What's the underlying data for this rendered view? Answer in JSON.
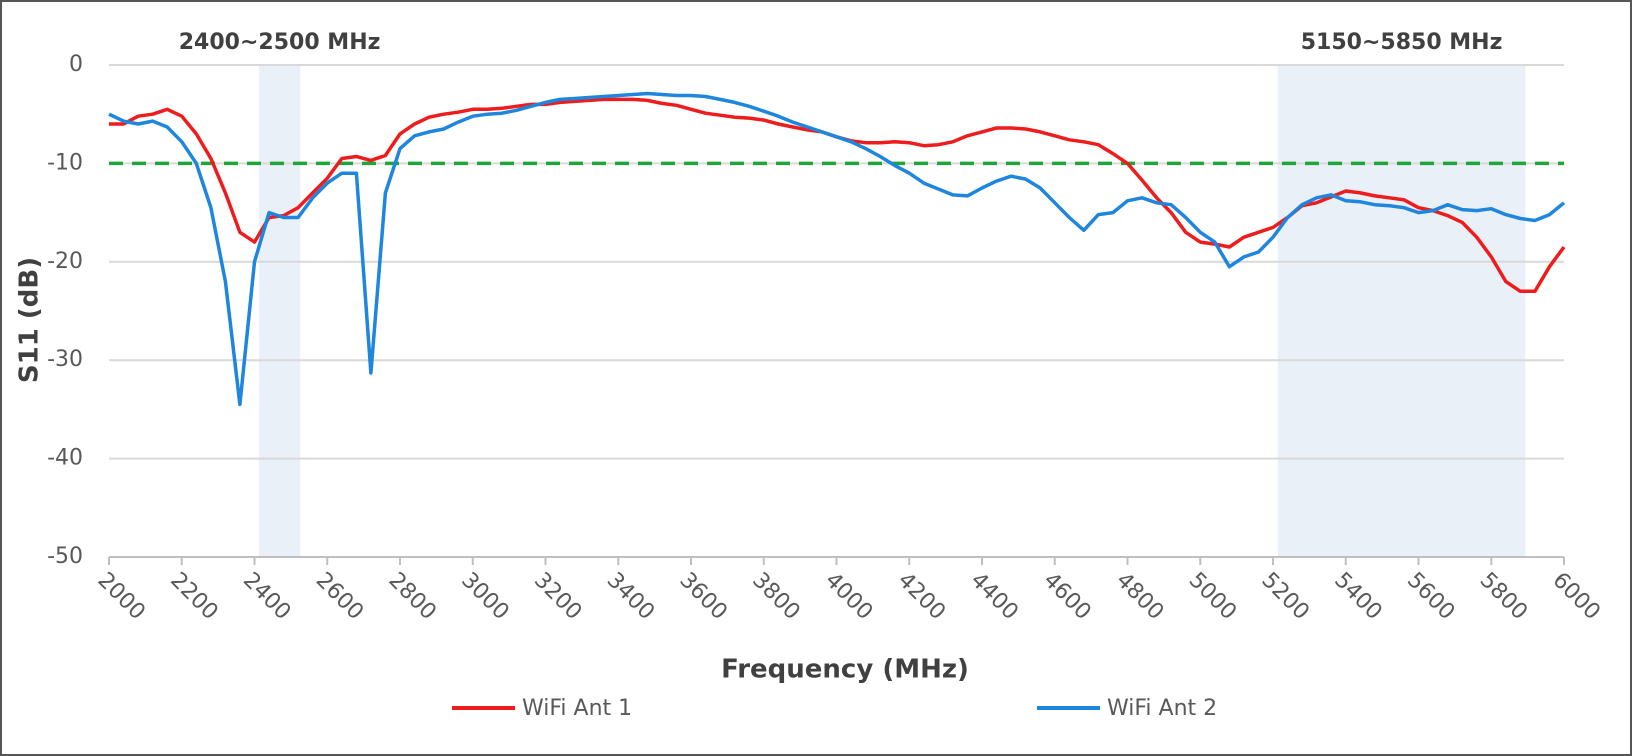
{
  "chart_data": {
    "type": "line",
    "xlabel": "Frequency (MHz)",
    "ylabel": "S11 (dB)",
    "xlim": [
      2000,
      6000
    ],
    "xticks": [
      2000,
      2200,
      2400,
      2600,
      2800,
      3000,
      3200,
      3400,
      3600,
      3800,
      4000,
      4200,
      4400,
      4600,
      4800,
      5000,
      5200,
      5400,
      5600,
      5800,
      6000
    ],
    "ylim": [
      -50,
      0
    ],
    "yticks": [
      0,
      -10,
      -20,
      -30,
      -40,
      -50
    ],
    "grid": true,
    "threshold": {
      "value": -10,
      "color": "#1fa53a"
    },
    "bands": [
      {
        "label": "2400~2500 MHz",
        "range": [
          2412,
          2526
        ],
        "color": "#e9f0f8"
      },
      {
        "label": "5150~5850 MHz",
        "range": [
          5213,
          5894
        ],
        "color": "#e9f0f8"
      }
    ],
    "x": [
      2000,
      2040,
      2080,
      2120,
      2160,
      2200,
      2240,
      2280,
      2320,
      2360,
      2400,
      2440,
      2480,
      2520,
      2560,
      2600,
      2640,
      2680,
      2720,
      2760,
      2800,
      2840,
      2880,
      2920,
      2960,
      3000,
      3040,
      3080,
      3120,
      3160,
      3200,
      3240,
      3280,
      3320,
      3360,
      3400,
      3440,
      3480,
      3520,
      3560,
      3600,
      3640,
      3680,
      3720,
      3760,
      3800,
      3840,
      3880,
      3920,
      3960,
      4000,
      4040,
      4080,
      4120,
      4160,
      4200,
      4240,
      4280,
      4320,
      4360,
      4400,
      4440,
      4480,
      4520,
      4560,
      4600,
      4640,
      4680,
      4720,
      4760,
      4800,
      4840,
      4880,
      4920,
      4960,
      5000,
      5040,
      5080,
      5120,
      5160,
      5200,
      5240,
      5280,
      5320,
      5360,
      5400,
      5440,
      5480,
      5520,
      5560,
      5600,
      5640,
      5680,
      5720,
      5760,
      5800,
      5840,
      5880,
      5920,
      5960,
      6000
    ],
    "series": [
      {
        "name": "WiFi Ant 1",
        "color": "#ee1c1c",
        "values": [
          -6.0,
          -6.0,
          -5.2,
          -5.0,
          -4.5,
          -5.2,
          -7.0,
          -9.5,
          -13,
          -17,
          -18,
          -15.5,
          -15.3,
          -14.5,
          -13,
          -11.5,
          -9.5,
          -9.3,
          -9.7,
          -9.2,
          -7,
          -6,
          -5.3,
          -5,
          -4.8,
          -4.5,
          -4.5,
          -4.4,
          -4.2,
          -4.0,
          -4.0,
          -3.8,
          -3.7,
          -3.6,
          -3.5,
          -3.5,
          -3.5,
          -3.6,
          -3.9,
          -4.1,
          -4.5,
          -4.9,
          -5.1,
          -5.3,
          -5.4,
          -5.6,
          -6.0,
          -6.3,
          -6.6,
          -6.8,
          -7.3,
          -7.7,
          -7.9,
          -7.9,
          -7.8,
          -7.9,
          -8.2,
          -8.1,
          -7.8,
          -7.2,
          -6.8,
          -6.4,
          -6.4,
          -6.5,
          -6.8,
          -7.2,
          -7.6,
          -7.8,
          -8.1,
          -9.0,
          -10,
          -11.7,
          -13.5,
          -15,
          -17,
          -18,
          -18.2,
          -18.5,
          -17.5,
          -17,
          -16.5,
          -15.5,
          -14.3,
          -14,
          -13.4,
          -12.8,
          -13,
          -13.3,
          -13.5,
          -13.7,
          -14.5,
          -14.8,
          -15.3,
          -16,
          -17.5,
          -19.5,
          -22,
          -23,
          -23,
          -20.5,
          -18.5
        ]
      },
      {
        "name": "WiFi Ant 2",
        "color": "#1f86dd",
        "values": [
          -5,
          -5.7,
          -6,
          -5.7,
          -6.3,
          -7.8,
          -10,
          -14.5,
          -22,
          -34.5,
          -20,
          -15,
          -15.5,
          -15.5,
          -13.5,
          -12,
          -11,
          -11,
          -31.3,
          -13,
          -8.5,
          -7.2,
          -6.8,
          -6.5,
          -5.8,
          -5.2,
          -5,
          -4.9,
          -4.6,
          -4.2,
          -3.8,
          -3.5,
          -3.4,
          -3.3,
          -3.2,
          -3.1,
          -3,
          -2.9,
          -3,
          -3.1,
          -3.1,
          -3.2,
          -3.5,
          -3.8,
          -4.2,
          -4.7,
          -5.2,
          -5.8,
          -6.3,
          -6.8,
          -7.3,
          -7.8,
          -8.5,
          -9.3,
          -10.2,
          -11,
          -12,
          -12.6,
          -13.2,
          -13.3,
          -12.5,
          -11.8,
          -11.3,
          -11.6,
          -12.5,
          -14,
          -15.5,
          -16.8,
          -15.2,
          -15,
          -13.8,
          -13.5,
          -14,
          -14.2,
          -15.5,
          -17,
          -18,
          -20.5,
          -19.5,
          -19,
          -17.5,
          -15.5,
          -14.2,
          -13.5,
          -13.2,
          -13.8,
          -13.9,
          -14.2,
          -14.3,
          -14.5,
          -15,
          -14.8,
          -14.2,
          -14.7,
          -14.8,
          -14.6,
          -15.2,
          -15.6,
          -15.8,
          -15.2,
          -14
        ]
      }
    ]
  }
}
